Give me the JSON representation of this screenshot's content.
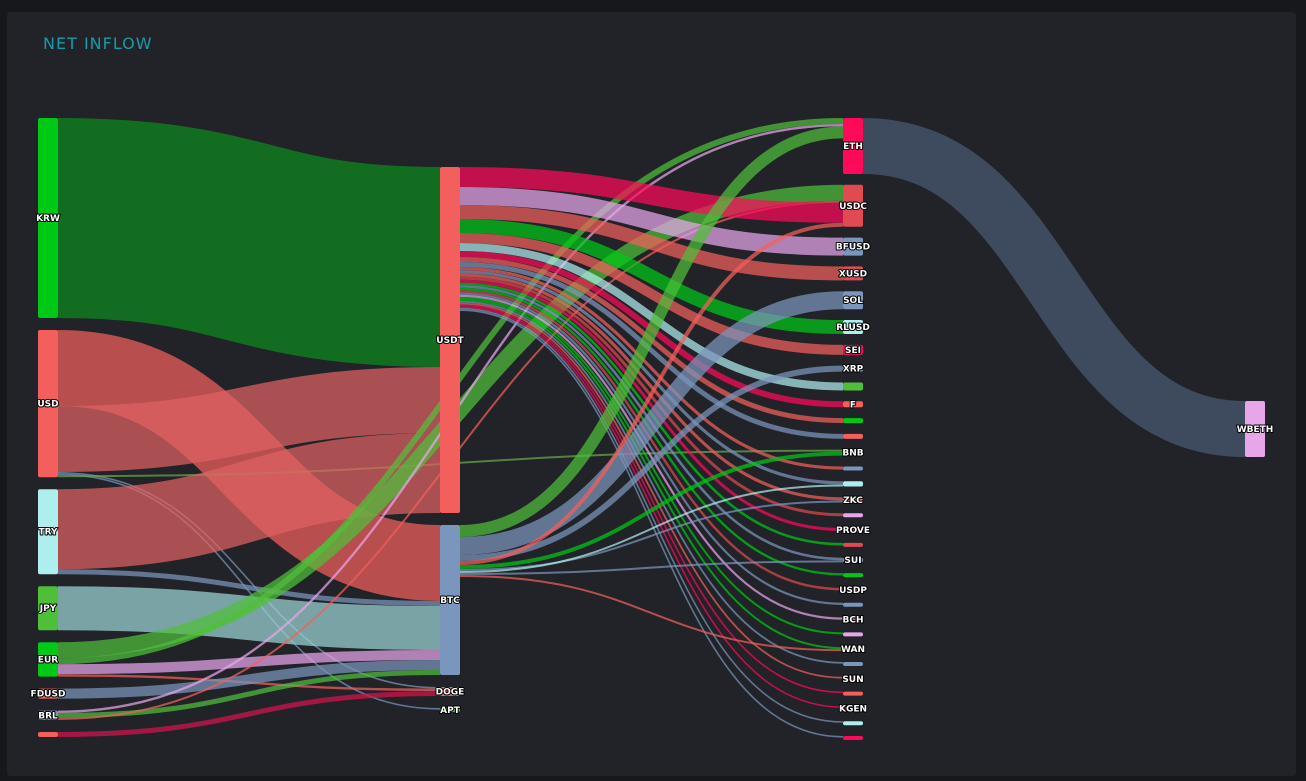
{
  "title": "NET INFLOW",
  "chart_data": {
    "type": "sankey",
    "title": "NET INFLOW",
    "columns": [
      [
        "KRW",
        "USD",
        "TRY",
        "JPY",
        "EUR",
        "FDUSD",
        "BRL",
        "n_src8"
      ],
      [
        "USDT",
        "BTC",
        "DOGE",
        "APT"
      ],
      [
        "ETH",
        "USDC",
        "BFUSD",
        "XUSD",
        "SOL",
        "RLUSD",
        "SEI",
        "XRP",
        "n_t9",
        "F",
        "n_t11",
        "n_t12",
        "BNB",
        "n_t14",
        "n_t15",
        "ZKC",
        "n_t17",
        "PROVE",
        "n_t19",
        "SUI",
        "n_t21",
        "USDP",
        "n_t23",
        "BCH",
        "n_t25",
        "WAN",
        "n_t27",
        "SUN",
        "n_t29",
        "KGEN",
        "n_t31",
        "n_t32"
      ],
      [
        "WBETH"
      ]
    ],
    "nodes": [
      {
        "id": "KRW",
        "label": "KRW",
        "color": "#00c817"
      },
      {
        "id": "USD",
        "label": "USD",
        "color": "#f25f5c"
      },
      {
        "id": "TRY",
        "label": "TRY",
        "color": "#aeeeee"
      },
      {
        "id": "JPY",
        "label": "JPY",
        "color": "#4fbf3a"
      },
      {
        "id": "EUR",
        "label": "EUR",
        "color": "#00c817"
      },
      {
        "id": "FDUSD",
        "label": "FDUSD",
        "color": "#f25f5c"
      },
      {
        "id": "BRL",
        "label": "BRL",
        "color": "#7b96bd"
      },
      {
        "id": "n_src8",
        "label": "",
        "color": "#f25f5c"
      },
      {
        "id": "USDT",
        "label": "USDT",
        "color": "#f25f5c"
      },
      {
        "id": "BTC",
        "label": "BTC",
        "color": "#7b96bd"
      },
      {
        "id": "DOGE",
        "label": "DOGE",
        "color": "#f25f5c"
      },
      {
        "id": "APT",
        "label": "APT",
        "color": "#4fbf3a"
      },
      {
        "id": "ETH",
        "label": "ETH",
        "color": "#ff0a5a"
      },
      {
        "id": "USDC",
        "label": "USDC",
        "color": "#e04a50"
      },
      {
        "id": "BFUSD",
        "label": "BFUSD",
        "color": "#7b96bd"
      },
      {
        "id": "XUSD",
        "label": "XUSD",
        "color": "#e04a50"
      },
      {
        "id": "SOL",
        "label": "SOL",
        "color": "#7b96bd"
      },
      {
        "id": "RLUSD",
        "label": "RLUSD",
        "color": "#aeeeee"
      },
      {
        "id": "SEI",
        "label": "SEI",
        "color": "#ff0a5a"
      },
      {
        "id": "XRP",
        "label": "XRP",
        "color": "#7b96bd"
      },
      {
        "id": "n_t9",
        "label": "",
        "color": "#4fbf3a"
      },
      {
        "id": "F",
        "label": "F",
        "color": "#f25f5c"
      },
      {
        "id": "n_t11",
        "label": "",
        "color": "#00c817"
      },
      {
        "id": "n_t12",
        "label": "",
        "color": "#f25f5c"
      },
      {
        "id": "BNB",
        "label": "BNB",
        "color": "#4fbf3a"
      },
      {
        "id": "n_t14",
        "label": "",
        "color": "#7b96bd"
      },
      {
        "id": "n_t15",
        "label": "",
        "color": "#aeeeee"
      },
      {
        "id": "ZKC",
        "label": "ZKC",
        "color": "#f25f5c"
      },
      {
        "id": "n_t17",
        "label": "",
        "color": "#e8a6ea"
      },
      {
        "id": "PROVE",
        "label": "PROVE",
        "color": "#ff0a5a"
      },
      {
        "id": "n_t19",
        "label": "",
        "color": "#e04a50"
      },
      {
        "id": "SUI",
        "label": "SUI",
        "color": "#7b96bd"
      },
      {
        "id": "n_t21",
        "label": "",
        "color": "#00c817"
      },
      {
        "id": "USDP",
        "label": "USDP",
        "color": "#f25f5c"
      },
      {
        "id": "n_t23",
        "label": "",
        "color": "#7b96bd"
      },
      {
        "id": "BCH",
        "label": "BCH",
        "color": "#f25f5c"
      },
      {
        "id": "n_t25",
        "label": "",
        "color": "#e8a6ea"
      },
      {
        "id": "WAN",
        "label": "WAN",
        "color": "#4fbf3a"
      },
      {
        "id": "n_t27",
        "label": "",
        "color": "#7b96bd"
      },
      {
        "id": "SUN",
        "label": "SUN",
        "color": "#ff0a5a"
      },
      {
        "id": "n_t29",
        "label": "",
        "color": "#f25f5c"
      },
      {
        "id": "KGEN",
        "label": "KGEN",
        "color": "#ff0a5a"
      },
      {
        "id": "n_t31",
        "label": "",
        "color": "#aeeeee"
      },
      {
        "id": "n_t32",
        "label": "",
        "color": "#ff0a5a"
      },
      {
        "id": "WBETH",
        "label": "WBETH",
        "color": "#e8a6ea"
      }
    ],
    "links": [
      {
        "source": "KRW",
        "target": "USDT",
        "value": 100,
        "color": "#0e8a1e"
      },
      {
        "source": "USD",
        "target": "BTC",
        "value": 38,
        "color": "#f25f5c"
      },
      {
        "source": "USD",
        "target": "USDT",
        "value": 33,
        "color": "#e06262"
      },
      {
        "source": "USD",
        "target": "DOGE",
        "value": 0.8,
        "color": "#7b96bd"
      },
      {
        "source": "USD",
        "target": "APT",
        "value": 0.8,
        "color": "#7b96bd"
      },
      {
        "source": "USD",
        "target": "BNB",
        "value": 1,
        "color": "#6aa64d"
      },
      {
        "source": "TRY",
        "target": "USDT",
        "value": 40,
        "color": "#e06262"
      },
      {
        "source": "TRY",
        "target": "BTC",
        "value": 2.5,
        "color": "#7b96bd"
      },
      {
        "source": "JPY",
        "target": "BTC",
        "value": 22,
        "color": "#9dd6d6"
      },
      {
        "source": "EUR",
        "target": "USDC",
        "value": 8,
        "color": "#4fbf3a"
      },
      {
        "source": "EUR",
        "target": "ETH",
        "value": 3,
        "color": "#4fbf3a"
      },
      {
        "source": "EUR",
        "target": "BTC",
        "value": 5,
        "color": "#e8a6ea"
      },
      {
        "source": "EUR",
        "target": "DOGE",
        "value": 1.2,
        "color": "#f25f5c"
      },
      {
        "source": "FDUSD",
        "target": "BTC",
        "value": 5,
        "color": "#7b96bd"
      },
      {
        "source": "BRL",
        "target": "ETH",
        "value": 1.2,
        "color": "#e8a6ea"
      },
      {
        "source": "BRL",
        "target": "BTC",
        "value": 2.5,
        "color": "#4fbf3a"
      },
      {
        "source": "BRL",
        "target": "USDC",
        "value": 1,
        "color": "#f25f5c"
      },
      {
        "source": "n_src8",
        "target": "DOGE",
        "value": 2.5,
        "color": "#d6144e"
      },
      {
        "source": "USDT",
        "target": "USDC",
        "value": 10,
        "color": "#ff0a5a"
      },
      {
        "source": "USDT",
        "target": "BFUSD",
        "value": 9,
        "color": "#e8a6ea"
      },
      {
        "source": "USDT",
        "target": "XUSD",
        "value": 7,
        "color": "#f25f5c"
      },
      {
        "source": "USDT",
        "target": "RLUSD",
        "value": 7,
        "color": "#00c817"
      },
      {
        "source": "USDT",
        "target": "SEI",
        "value": 5,
        "color": "#f25f5c"
      },
      {
        "source": "USDT",
        "target": "n_t9",
        "value": 4,
        "color": "#aeeeee"
      },
      {
        "source": "USDT",
        "target": "F",
        "value": 3,
        "color": "#ff0a5a"
      },
      {
        "source": "USDT",
        "target": "n_t11",
        "value": 2.5,
        "color": "#f25f5c"
      },
      {
        "source": "USDT",
        "target": "n_t12",
        "value": 2.5,
        "color": "#7b96bd"
      },
      {
        "source": "USDT",
        "target": "n_t14",
        "value": 1.6,
        "color": "#f25f5c"
      },
      {
        "source": "USDT",
        "target": "n_t15",
        "value": 1.6,
        "color": "#7b96bd"
      },
      {
        "source": "USDT",
        "target": "ZKC",
        "value": 1.6,
        "color": "#f25f5c"
      },
      {
        "source": "USDT",
        "target": "n_t17",
        "value": 1.5,
        "color": "#e04a50"
      },
      {
        "source": "USDT",
        "target": "PROVE",
        "value": 1.5,
        "color": "#ff0a5a"
      },
      {
        "source": "USDT",
        "target": "n_t19",
        "value": 1.3,
        "color": "#00c817"
      },
      {
        "source": "USDT",
        "target": "SUI",
        "value": 1.3,
        "color": "#7b96bd"
      },
      {
        "source": "USDT",
        "target": "n_t21",
        "value": 1.2,
        "color": "#00c817"
      },
      {
        "source": "USDT",
        "target": "USDP",
        "value": 1.2,
        "color": "#e04a50"
      },
      {
        "source": "USDT",
        "target": "n_t23",
        "value": 1.1,
        "color": "#7b96bd"
      },
      {
        "source": "USDT",
        "target": "BCH",
        "value": 1.1,
        "color": "#e8a6ea"
      },
      {
        "source": "USDT",
        "target": "n_t25",
        "value": 1,
        "color": "#00c817"
      },
      {
        "source": "USDT",
        "target": "WAN",
        "value": 1,
        "color": "#00c817"
      },
      {
        "source": "USDT",
        "target": "n_t27",
        "value": 0.9,
        "color": "#7b96bd"
      },
      {
        "source": "USDT",
        "target": "SUN",
        "value": 0.9,
        "color": "#f25f5c"
      },
      {
        "source": "USDT",
        "target": "n_t29",
        "value": 0.8,
        "color": "#ff0a5a"
      },
      {
        "source": "USDT",
        "target": "KGEN",
        "value": 0.8,
        "color": "#ff0a5a"
      },
      {
        "source": "USDT",
        "target": "n_t31",
        "value": 0.8,
        "color": "#7b96bd"
      },
      {
        "source": "USDT",
        "target": "n_t32",
        "value": 0.8,
        "color": "#7b96bd"
      },
      {
        "source": "BTC",
        "target": "ETH",
        "value": 6,
        "color": "#4fbf3a"
      },
      {
        "source": "BTC",
        "target": "SOL",
        "value": 9,
        "color": "#7b96bd"
      },
      {
        "source": "BTC",
        "target": "XRP",
        "value": 3,
        "color": "#7b96bd"
      },
      {
        "source": "BTC",
        "target": "USDC",
        "value": 2,
        "color": "#f25f5c"
      },
      {
        "source": "BTC",
        "target": "BNB",
        "value": 2,
        "color": "#00c817"
      },
      {
        "source": "BTC",
        "target": "ZKC",
        "value": 1,
        "color": "#7b96bd"
      },
      {
        "source": "BTC",
        "target": "n_t15",
        "value": 1,
        "color": "#aeeeee"
      },
      {
        "source": "BTC",
        "target": "SUI",
        "value": 1,
        "color": "#7b96bd"
      },
      {
        "source": "BTC",
        "target": "WAN",
        "value": 1,
        "color": "#f25f5c"
      },
      {
        "source": "ETH",
        "target": "WBETH",
        "value": 28,
        "color": "#4a5a73"
      }
    ]
  }
}
